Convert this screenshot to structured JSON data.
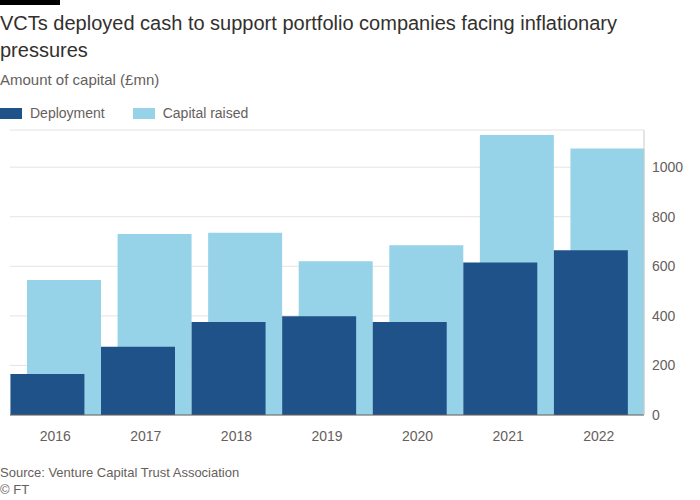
{
  "chart_data": {
    "type": "bar",
    "title": "VCTs deployed cash to support portfolio companies facing inflationary pressures",
    "subtitle": "Amount of capital (£mn)",
    "source": "Source: Venture Capital Trust Association",
    "credit": "© FT",
    "categories": [
      "2016",
      "2017",
      "2018",
      "2019",
      "2020",
      "2021",
      "2022"
    ],
    "series": [
      {
        "name": "Deployment",
        "color": "#1f5289",
        "values": [
          165,
          275,
          375,
          398,
          375,
          615,
          665
        ]
      },
      {
        "name": "Capital raised",
        "color": "#96d3e8",
        "values": [
          545,
          730,
          735,
          620,
          685,
          1130,
          1075
        ]
      }
    ],
    "stacked": false,
    "ylim": [
      0,
      1150
    ],
    "yticks": [
      0,
      200,
      400,
      600,
      800,
      1000
    ],
    "grid": true,
    "legend": "top-left"
  }
}
